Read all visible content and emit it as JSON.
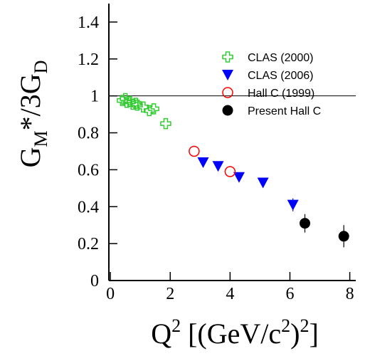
{
  "chart_data": {
    "type": "scatter",
    "xlabel": [
      "Q",
      "2",
      " [(GeV/c",
      "2",
      ")",
      "2",
      "]"
    ],
    "ylabel": [
      "G",
      "M",
      "*/3G",
      "D"
    ],
    "xlim": [
      -0.05,
      8.2
    ],
    "ylim": [
      0,
      1.5
    ],
    "xticks": [
      0,
      2,
      4,
      6,
      8
    ],
    "yticks": [
      0,
      0.2,
      0.4,
      0.6,
      0.8,
      1,
      1.2,
      1.4
    ],
    "hline": 1,
    "series": [
      {
        "name": "CLAS (2000)",
        "color": "#33cc33",
        "marker": "cross-open",
        "x": [
          0.4,
          0.5,
          0.55,
          0.65,
          0.75,
          0.85,
          0.9,
          1.1,
          1.3,
          1.45,
          1.85
        ],
        "values": [
          0.975,
          0.985,
          0.965,
          0.97,
          0.955,
          0.96,
          0.95,
          0.94,
          0.92,
          0.93,
          0.85
        ]
      },
      {
        "name": "CLAS (2006)",
        "color": "#0000ff",
        "marker": "triangle-down",
        "x": [
          3.1,
          3.6,
          4.3,
          5.1,
          6.1
        ],
        "values": [
          0.64,
          0.62,
          0.56,
          0.53,
          0.41
        ],
        "errors": [
          0.02,
          0.02,
          0.02,
          0.02,
          0.035
        ]
      },
      {
        "name": "Hall C (1999)",
        "color": "#ff0000",
        "marker": "circle-open",
        "x": [
          2.8,
          4.0
        ],
        "values": [
          0.7,
          0.59
        ]
      },
      {
        "name": "Present Hall C",
        "color": "#000000",
        "marker": "circle",
        "x": [
          6.5,
          7.8
        ],
        "values": [
          0.31,
          0.24
        ],
        "errors": [
          0.05,
          0.06
        ]
      }
    ]
  }
}
